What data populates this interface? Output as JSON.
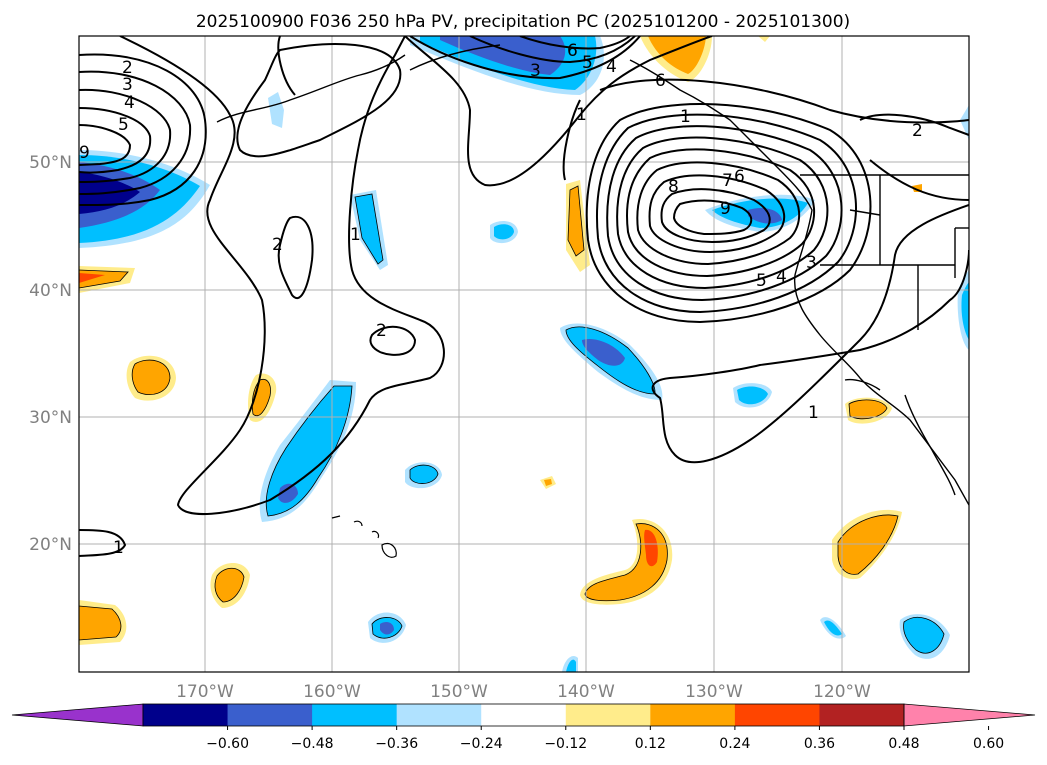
{
  "title": "2025100900 F036 250 hPa PV, precipitation PC (2025101200 - 2025101300)",
  "map": {
    "lat_labels": [
      "50°N",
      "40°N",
      "30°N",
      "20°N"
    ],
    "lon_labels": [
      "170°W",
      "160°W",
      "150°W",
      "140°W",
      "130°W",
      "120°W"
    ]
  },
  "contour_labels": [
    "2",
    "3",
    "4",
    "5",
    "6",
    "5",
    "4",
    "3",
    "1",
    "2",
    "2",
    "1",
    "2",
    "1",
    "8",
    "7",
    "6",
    "9",
    "5",
    "4",
    "3",
    "1",
    "1",
    "6",
    "9"
  ],
  "colorbar": {
    "colors": [
      "#9932cc",
      "#00008b",
      "#3a5fcd",
      "#00bfff",
      "#b0e2ff",
      "#ffffff",
      "#ffec8b",
      "#ffa500",
      "#ff4500",
      "#b22222",
      "#ff82ab"
    ],
    "tick_labels": [
      "−0.60",
      "−0.48",
      "−0.36",
      "−0.24",
      "−0.12",
      "0.12",
      "0.24",
      "0.36",
      "0.48",
      "0.60"
    ]
  },
  "precip_colors": {
    "neg_strong": "#3a5fcd",
    "neg_mid": "#00bfff",
    "neg_weak": "#b0e2ff",
    "pos_weak": "#ffec8b",
    "pos_mid": "#ffa500",
    "pos_strong": "#ff4500"
  }
}
